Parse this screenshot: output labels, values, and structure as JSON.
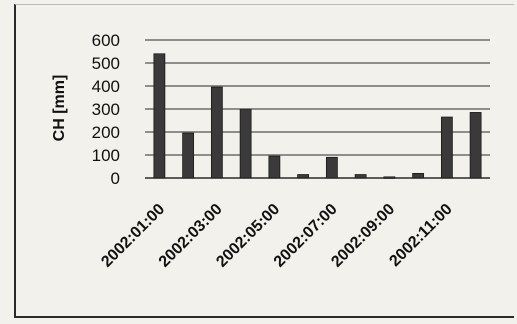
{
  "chart_data": {
    "type": "bar",
    "categories": [
      "2002:01:00",
      "2002:02:00",
      "2002:03:00",
      "2002:04:00",
      "2002:05:00",
      "2002:06:00",
      "2002:07:00",
      "2002:08:00",
      "2002:09:00",
      "2002:10:00",
      "2002:11:00",
      "2002:12:00"
    ],
    "tick_labels_shown": [
      "2002:01:00",
      "2002:03:00",
      "2002:05:00",
      "2002:07:00",
      "2002:09:00",
      "2002:11:00"
    ],
    "values": [
      540,
      195,
      395,
      300,
      95,
      15,
      90,
      15,
      5,
      20,
      265,
      285
    ],
    "ylabel": "CH [mm]",
    "xlabel": "",
    "title": "",
    "ylim": [
      0,
      600
    ],
    "yticks": [
      0,
      100,
      200,
      300,
      400,
      500,
      600
    ],
    "grid": true,
    "legend": "none",
    "colors": {
      "bar": "#3a3a3a",
      "grid": "#2a2a2a",
      "text": "#111111"
    }
  }
}
